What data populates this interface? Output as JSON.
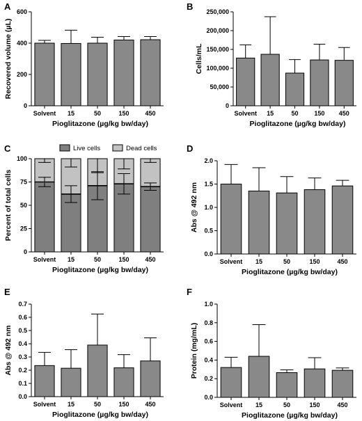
{
  "chart_data": [
    {
      "panel": "A",
      "type": "bar",
      "categories": [
        "Solvent",
        "15",
        "50",
        "150",
        "450"
      ],
      "values": [
        400,
        398,
        400,
        420,
        422
      ],
      "errors": [
        18,
        85,
        38,
        22,
        20
      ],
      "xlabel": "Pioglitazone (µg/kg bw/day)",
      "ylabel": "Recovered volume (µL)",
      "ylim": [
        0,
        600
      ],
      "yticks": [
        "0",
        "200",
        "400",
        "600"
      ],
      "ytick_values": [
        0,
        200,
        400,
        600
      ]
    },
    {
      "panel": "B",
      "type": "bar",
      "categories": [
        "Solvent",
        "15",
        "50",
        "150",
        "450"
      ],
      "values": [
        127000,
        137000,
        87000,
        122000,
        121000
      ],
      "errors": [
        35000,
        100000,
        36000,
        42000,
        34000
      ],
      "xlabel": "Pioglitazone (µg/kg bw/day)",
      "ylabel": "Cells/mL",
      "ylim": [
        0,
        250000
      ],
      "yticks": [
        "0",
        "50,000",
        "100,000",
        "150,000",
        "200,000",
        "250,000"
      ],
      "ytick_values": [
        0,
        50000,
        100000,
        150000,
        200000,
        250000
      ]
    },
    {
      "panel": "C",
      "type": "stacked-bar",
      "categories": [
        "Solvent",
        "15",
        "50",
        "150",
        "450"
      ],
      "series": [
        {
          "name": "Live cells",
          "color": "#7f7f7f",
          "values": [
            75,
            62,
            71,
            73,
            70
          ],
          "errors": [
            5,
            9,
            15,
            11,
            4
          ]
        },
        {
          "name": "Dead cells",
          "color": "#c2c2c2",
          "values": [
            25,
            38,
            29,
            27,
            30
          ],
          "errors": [
            4,
            9,
            15,
            11,
            4
          ]
        }
      ],
      "xlabel": "Pioglitazone (µg/kg bw/day)",
      "ylabel": "Percent of total cells",
      "ylim": [
        0,
        100
      ],
      "yticks": [
        "0",
        "25",
        "50",
        "75",
        "100"
      ],
      "ytick_values": [
        0,
        25,
        50,
        75,
        100
      ],
      "legend": "top"
    },
    {
      "panel": "D",
      "type": "bar",
      "categories": [
        "Solvent",
        "15",
        "50",
        "150",
        "450"
      ],
      "values": [
        1.5,
        1.35,
        1.31,
        1.38,
        1.46
      ],
      "errors": [
        0.42,
        0.5,
        0.35,
        0.25,
        0.12
      ],
      "xlabel": "Pioglitazone (µg/kg bw/day)",
      "ylabel": "Abs @ 492 nm",
      "ylim": [
        0,
        2.0
      ],
      "yticks": [
        "0.0",
        "0.5",
        "1.0",
        "1.5",
        "2.0"
      ],
      "ytick_values": [
        0,
        0.5,
        1.0,
        1.5,
        2.0
      ]
    },
    {
      "panel": "E",
      "type": "bar",
      "categories": [
        "Solvent",
        "15",
        "50",
        "150",
        "450"
      ],
      "values": [
        0.235,
        0.215,
        0.39,
        0.218,
        0.27
      ],
      "errors": [
        0.1,
        0.14,
        0.235,
        0.1,
        0.175
      ],
      "xlabel": "Pioglitazone (µg/kg bw/day)",
      "ylabel": "Abs @ 492 nm",
      "ylim": [
        0,
        0.7
      ],
      "yticks": [
        "0.0",
        "0.1",
        "0.2",
        "0.3",
        "0.4",
        "0.5",
        "0.6",
        "0.7"
      ],
      "ytick_values": [
        0,
        0.1,
        0.2,
        0.3,
        0.4,
        0.5,
        0.6,
        0.7
      ]
    },
    {
      "panel": "F",
      "type": "bar",
      "categories": [
        "Solvent",
        "15",
        "50",
        "150",
        "450"
      ],
      "values": [
        0.32,
        0.44,
        0.265,
        0.305,
        0.29
      ],
      "errors": [
        0.11,
        0.34,
        0.03,
        0.12,
        0.025
      ],
      "xlabel": "Pioglitazone (µg/kg bw/day)",
      "ylabel": "Protein (mg/mL)",
      "ylim": [
        0,
        1.0
      ],
      "yticks": [
        "0.0",
        "0.2",
        "0.4",
        "0.6",
        "0.8",
        "1.0"
      ],
      "ytick_values": [
        0,
        0.2,
        0.4,
        0.6,
        0.8,
        1.0
      ]
    }
  ],
  "colors": {
    "bar": "#898989",
    "live": "#7f7f7f",
    "dead": "#c2c2c2",
    "axis": "#000000"
  }
}
